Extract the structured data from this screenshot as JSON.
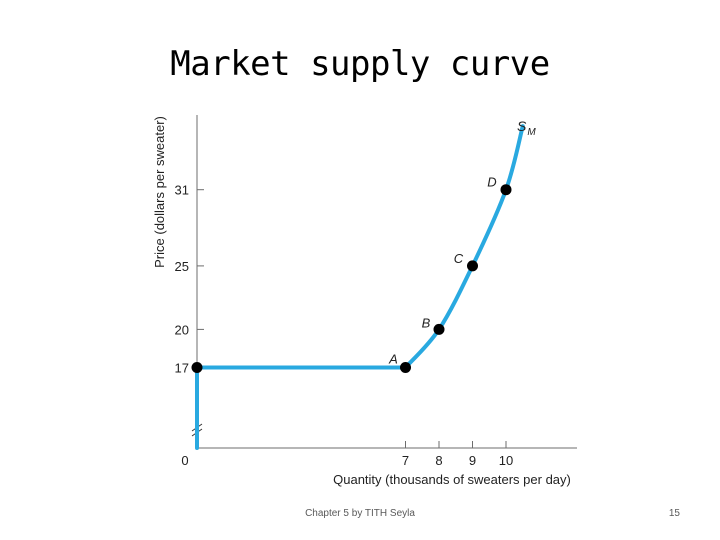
{
  "slide": {
    "title": "Market supply curve",
    "footer": "Chapter 5 by TITH Seyla",
    "page_number": "15"
  },
  "chart_data": {
    "type": "line",
    "xlabel": "Quantity (thousands of sweaters per day)",
    "ylabel": "Price (dollars per sweater)",
    "x_ticks": [
      7,
      8,
      9,
      10
    ],
    "y_ticks": [
      17,
      20,
      25,
      31
    ],
    "origin_label": "0",
    "axis_break": "y",
    "curve_label": "S",
    "curve_label_subscript": "M",
    "series": [
      {
        "color": "#29a9e0",
        "points": [
          {
            "x": 0,
            "y": 17
          },
          {
            "x": 7,
            "y": 17
          },
          {
            "x": 8,
            "y": 20
          },
          {
            "x": 9,
            "y": 25
          },
          {
            "x": 10,
            "y": 31
          }
        ]
      }
    ],
    "marked_points": [
      {
        "label": "A",
        "x": 0,
        "y": 17,
        "show_label": false
      },
      {
        "label": "A",
        "x": 7,
        "y": 17,
        "show_label": true
      },
      {
        "label": "B",
        "x": 8,
        "y": 20,
        "show_label": true
      },
      {
        "label": "C",
        "x": 9,
        "y": 25,
        "show_label": true
      },
      {
        "label": "D",
        "x": 10,
        "y": 31,
        "show_label": true
      }
    ],
    "curve_end": {
      "x": 10.5,
      "y": 36
    },
    "grid": false,
    "legend": "none"
  }
}
